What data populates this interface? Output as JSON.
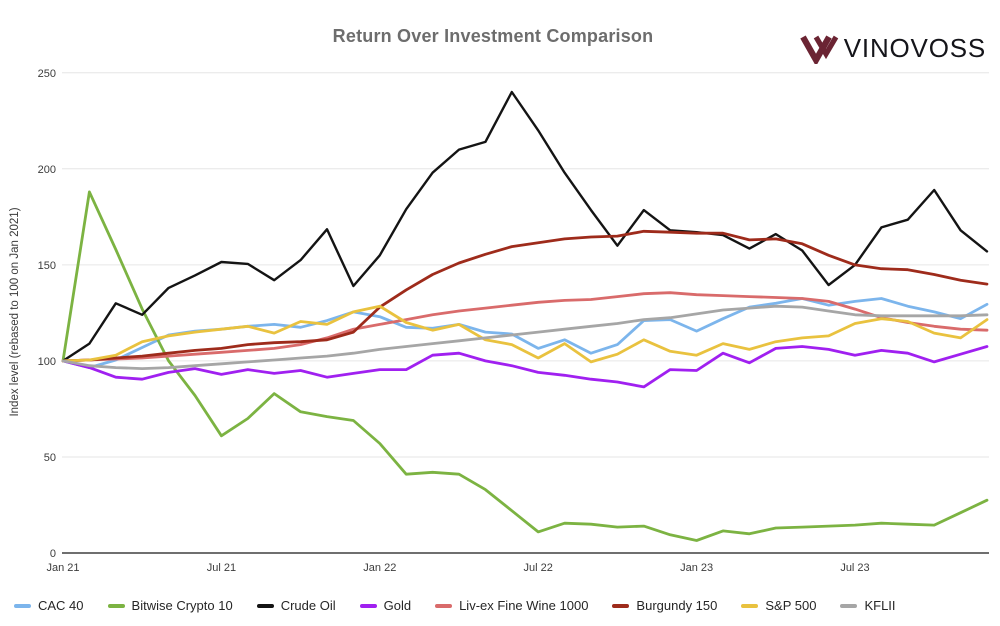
{
  "title": "Return Over Investment Comparison",
  "logo": {
    "text": "VINOVOSS",
    "mark_color": "#6b2433"
  },
  "y_axis": {
    "label": "Index level (rebased to 100 on Jan 2021)",
    "ticks": [
      0,
      50,
      100,
      150,
      200,
      250
    ]
  },
  "x_axis": {
    "ticks": [
      {
        "label": "Jan 21",
        "index": 0
      },
      {
        "label": "Jul 21",
        "index": 6
      },
      {
        "label": "Jan 22",
        "index": 12
      },
      {
        "label": "Jul 22",
        "index": 18
      },
      {
        "label": "Jan 23",
        "index": 24
      },
      {
        "label": "Jul 23",
        "index": 30
      }
    ]
  },
  "chart_data": {
    "type": "line",
    "title": "Return Over Investment Comparison",
    "xlabel": "",
    "ylabel": "Index level (rebased to 100 on Jan 2021)",
    "ylim": [
      0,
      250
    ],
    "grid": true,
    "legend_position": "bottom",
    "x": [
      "Jan 21",
      "Feb 21",
      "Mar 21",
      "Apr 21",
      "May 21",
      "Jun 21",
      "Jul 21",
      "Aug 21",
      "Sep 21",
      "Oct 21",
      "Nov 21",
      "Dec 21",
      "Jan 22",
      "Feb 22",
      "Mar 22",
      "Apr 22",
      "May 22",
      "Jun 22",
      "Jul 22",
      "Aug 22",
      "Sep 22",
      "Oct 22",
      "Nov 22",
      "Dec 22",
      "Jan 23",
      "Feb 23",
      "Mar 23",
      "Apr 23",
      "May 23",
      "Jun 23",
      "Jul 23",
      "Aug 23",
      "Sep 23",
      "Oct 23",
      "Nov 23",
      "Dec 23"
    ],
    "series": [
      {
        "name": "CAC 40",
        "color": "#7cb5ec",
        "values": [
          100,
          96.5,
          100.5,
          107,
          113.5,
          115.5,
          116.5,
          118,
          119,
          117.5,
          121,
          125.5,
          123,
          117.5,
          117,
          119,
          115,
          114,
          106.5,
          111,
          104,
          108.5,
          121,
          121.5,
          115.5,
          122,
          128,
          130,
          132.5,
          129,
          131,
          132.5,
          128.5,
          125.5,
          122,
          129.5
        ]
      },
      {
        "name": "Bitwise Crypto 10",
        "color": "#7cb342",
        "values": [
          100,
          188,
          158,
          127,
          100,
          82,
          61,
          70,
          83,
          73.5,
          71,
          69,
          57,
          41,
          42,
          41,
          33,
          22,
          11,
          15.5,
          15,
          13.5,
          14,
          9.5,
          6.5,
          11.5,
          10,
          13,
          13.5,
          14,
          14.5,
          15.5,
          15,
          14.5,
          21,
          27.5
        ]
      },
      {
        "name": "Crude Oil",
        "color": "#141414",
        "values": [
          100,
          109,
          130,
          124,
          138,
          144.5,
          151.5,
          150.5,
          142,
          152.5,
          168.5,
          139,
          155,
          179,
          198,
          210,
          214,
          240,
          220,
          198,
          178.5,
          160,
          178.5,
          168,
          167,
          165.5,
          158.5,
          166,
          157.5,
          139.5,
          150,
          169.5,
          173.5,
          189,
          168,
          157
        ]
      },
      {
        "name": "Gold",
        "color": "#a020f0",
        "values": [
          100,
          96.5,
          91.5,
          90.5,
          94,
          96,
          93,
          95.5,
          93.5,
          95,
          91.5,
          93.5,
          95.5,
          95.5,
          103,
          104,
          100,
          97.5,
          94,
          92.5,
          90.5,
          89,
          86.5,
          95.5,
          95,
          104,
          99,
          106.5,
          107.5,
          106,
          103,
          105.5,
          104,
          99.5,
          103.5,
          107.5
        ]
      },
      {
        "name": "Liv-ex Fine Wine 1000",
        "color": "#d96b6b",
        "values": [
          100,
          100.5,
          101,
          101.5,
          102.5,
          103.5,
          104.5,
          105.5,
          106.5,
          108.5,
          112,
          116.5,
          119,
          121.5,
          124,
          126,
          127.5,
          129,
          130.5,
          131.5,
          132,
          133.5,
          135,
          135.5,
          134.5,
          134,
          133.5,
          133,
          132.5,
          131,
          127,
          122.5,
          120,
          118,
          116.5,
          116
        ]
      },
      {
        "name": "Burgundy 150",
        "color": "#9e2b1b",
        "values": [
          100,
          100.5,
          101.5,
          102.5,
          104,
          105.5,
          106.5,
          108.5,
          109.5,
          110,
          111,
          115,
          128,
          137,
          145,
          151,
          155.5,
          159.5,
          161.5,
          163.5,
          164.5,
          165,
          167.5,
          167,
          166.5,
          166.5,
          163,
          163.5,
          161,
          155,
          150,
          148,
          147.5,
          145,
          142,
          140
        ]
      },
      {
        "name": "S&P 500",
        "color": "#e9c23f",
        "values": [
          100,
          100.5,
          103,
          110,
          113,
          115,
          116.5,
          118,
          114.5,
          120.5,
          119,
          125.5,
          128.5,
          120,
          116,
          119,
          111,
          108.5,
          101.5,
          109,
          99.5,
          103.5,
          111,
          105,
          103,
          109,
          106,
          110,
          112,
          113,
          119.5,
          122,
          120.5,
          114.5,
          112,
          121.5
        ]
      },
      {
        "name": "KFLII",
        "color": "#a6a6a6",
        "values": [
          100,
          97.5,
          96.5,
          96,
          96.5,
          97.5,
          98.5,
          99.5,
          100.5,
          101.5,
          102.5,
          104,
          106,
          107.5,
          109,
          110.5,
          112,
          113.5,
          115,
          116.5,
          118,
          119.5,
          121.5,
          122.5,
          124.5,
          126.5,
          127.5,
          128.5,
          128,
          126,
          124,
          123.5,
          123.5,
          123.5,
          123.5,
          124
        ]
      }
    ]
  }
}
